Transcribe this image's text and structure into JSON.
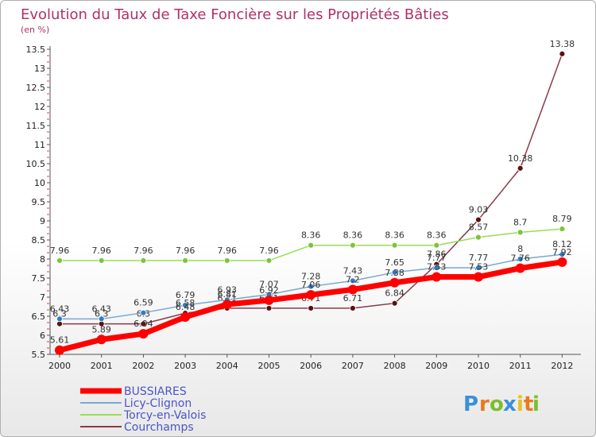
{
  "chart_data": {
    "type": "line",
    "title": "Evolution du Taux de Taxe Foncière sur les Propriétés Bâties",
    "subtitle": "(en %)",
    "xlabel": "",
    "ylabel": "(en %)",
    "ylim": [
      5.5,
      13.5
    ],
    "yticks": [
      "5.5",
      "6",
      "6.5",
      "7",
      "7.5",
      "8",
      "8.5",
      "9",
      "9.5",
      "10",
      "10.5",
      "11",
      "11.5",
      "12",
      "12.5",
      "13",
      "13.5"
    ],
    "categories": [
      "2000",
      "2001",
      "2002",
      "2003",
      "2004",
      "2005",
      "2006",
      "2007",
      "2008",
      "2009",
      "2010",
      "2011",
      "2012"
    ],
    "series": [
      {
        "name": "Courchamps",
        "color": "#8a3a48",
        "marker": "#5a1010",
        "values": [
          6.3,
          6.3,
          6.3,
          6.58,
          6.71,
          6.71,
          6.71,
          6.71,
          6.84,
          7.86,
          9.03,
          10.38,
          13.38
        ],
        "labels": [
          "6.3",
          "6.3",
          "6.3",
          "6.58",
          "6.71",
          "6.71",
          "6.71",
          "6.71",
          "6.84",
          "7.86",
          "9.03",
          "10.38",
          "13.38"
        ]
      },
      {
        "name": "Torcy-en-Valois",
        "color": "#99dd55",
        "marker": "#7cc43a",
        "values": [
          7.96,
          7.96,
          7.96,
          7.96,
          7.96,
          7.96,
          8.36,
          8.36,
          8.36,
          8.36,
          8.57,
          8.7,
          8.79
        ],
        "labels": [
          "7.96",
          "7.96",
          "7.96",
          "7.96",
          "7.96",
          "7.96",
          "8.36",
          "8.36",
          "8.36",
          "8.36",
          "8.57",
          "8.7",
          "8.79"
        ]
      },
      {
        "name": "Licy-Clignon",
        "color": "#7aa8d0",
        "marker": "#2f7cc4",
        "values": [
          6.43,
          6.43,
          6.59,
          6.79,
          6.93,
          7.07,
          7.28,
          7.43,
          7.65,
          7.77,
          7.77,
          8.0,
          8.12
        ],
        "labels": [
          "6.43",
          "6.43",
          "6.59",
          "6.79",
          "6.93",
          "7.07",
          "7.28",
          "7.43",
          "7.65",
          "7.77",
          "7.77",
          "8",
          "8.12"
        ]
      },
      {
        "name": "BUSSIARES",
        "color": "#ff0000",
        "marker": "#ff0000",
        "values": [
          5.61,
          5.89,
          6.04,
          6.48,
          6.81,
          6.92,
          7.06,
          7.2,
          7.38,
          7.53,
          7.53,
          7.76,
          7.92
        ],
        "labels": [
          "5.61",
          "5.89",
          "6.04",
          "6.48",
          "6.81",
          "6.92",
          "7.06",
          "7.2",
          "7.38",
          "7.53",
          "7.53",
          "7.76",
          "7.92"
        ]
      }
    ],
    "legend": [
      "BUSSIARES",
      "Licy-Clignon",
      "Torcy-en-Valois",
      "Courchamps"
    ],
    "legend_position": "bottom-left",
    "grid": false
  },
  "brand": {
    "letters": [
      "P",
      "r",
      "o",
      "x",
      "i",
      "t",
      "i"
    ],
    "colors": [
      "#3a8fd8",
      "#e87a1e",
      "#7cbf2a",
      "#3a8fd8",
      "#e8c01e",
      "#e87a1e",
      "#7cbf2a"
    ]
  }
}
